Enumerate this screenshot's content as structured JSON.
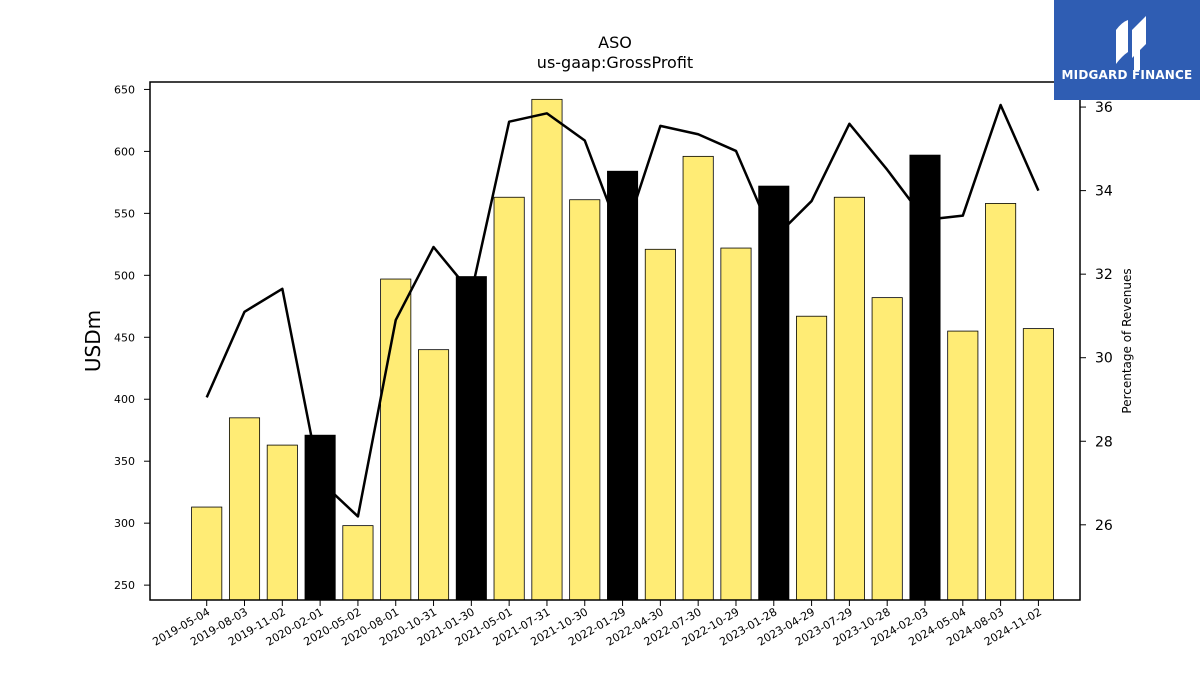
{
  "logo": {
    "text": "MIDGARD FINANCE"
  },
  "colors": {
    "bar": "#ffec75",
    "bar_highlight": "#000000",
    "line": "#000000",
    "logo_bg": "#2f5db3"
  },
  "chart_data": {
    "type": "bar",
    "title": "ASO",
    "subtitle": "us-gaap:GrossProfit",
    "ylabel": "USDm",
    "ylabel_right": "Percentage of Revenues",
    "ylim": [
      238,
      656
    ],
    "ylim_right": [
      24.2,
      36.6
    ],
    "y_ticks": [
      250,
      300,
      350,
      400,
      450,
      500,
      550,
      600,
      650
    ],
    "y_ticks_right": [
      26,
      28,
      30,
      32,
      34,
      36
    ],
    "categories": [
      "2019-05-04",
      "2019-08-03",
      "2019-11-02",
      "2020-02-01",
      "2020-05-02",
      "2020-08-01",
      "2020-10-31",
      "2021-01-30",
      "2021-05-01",
      "2021-07-31",
      "2021-10-30",
      "2022-01-29",
      "2022-04-30",
      "2022-07-30",
      "2022-10-29",
      "2023-01-28",
      "2023-04-29",
      "2023-07-29",
      "2023-10-28",
      "2024-02-03",
      "2024-05-04",
      "2024-08-03",
      "2024-11-02"
    ],
    "series": [
      {
        "values": [
          313,
          385,
          363,
          371,
          298,
          497,
          440,
          499,
          563,
          642,
          561,
          584,
          521,
          596,
          522,
          572,
          467,
          563,
          482,
          597,
          455,
          558,
          457
        ]
      },
      {
        "axis": "right",
        "type": "line",
        "values": [
          29.05,
          31.1,
          31.65,
          27.05,
          26.2,
          30.9,
          32.65,
          31.55,
          35.65,
          35.85,
          35.2,
          32.8,
          35.55,
          35.35,
          34.95,
          32.85,
          33.75,
          35.6,
          34.5,
          33.3,
          33.4,
          36.05,
          34.0
        ]
      }
    ],
    "highlighted": [
      "2020-02-01",
      "2021-01-30",
      "2022-01-29",
      "2023-01-28",
      "2024-02-03"
    ],
    "grid": false,
    "legend": "none"
  }
}
